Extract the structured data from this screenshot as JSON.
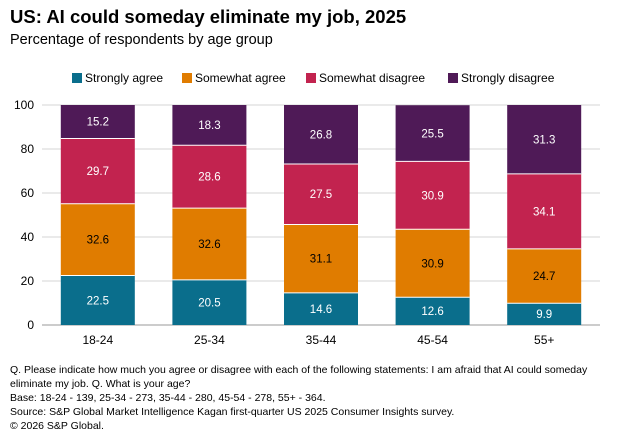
{
  "title": "US: AI could someday eliminate my job, 2025",
  "subtitle": "Percentage of respondents by age group",
  "notes": {
    "question": "Q. Please indicate how much you agree or disagree with each of the following statements: I am afraid that AI could someday eliminate my job. Q. What is your age?",
    "base": "Base: 18-24 - 139, 25-34 - 273, 35-44 - 280, 45-54 - 278, 55+ - 364.",
    "source": "Source: S&P Global Market Intelligence Kagan first-quarter US 2025 Consumer Insights survey.",
    "copyright": "© 2026 S&P Global."
  },
  "chart_data": {
    "type": "bar",
    "stacked": true,
    "categories": [
      "18-24",
      "25-34",
      "35-44",
      "45-54",
      "55+"
    ],
    "series": [
      {
        "name": "Strongly agree",
        "color": "#0a6e8c",
        "values": [
          22.5,
          20.5,
          14.6,
          12.6,
          9.9
        ]
      },
      {
        "name": "Somewhat agree",
        "color": "#e07c00",
        "values": [
          32.6,
          32.6,
          31.1,
          30.9,
          24.7
        ]
      },
      {
        "name": "Somewhat disagree",
        "color": "#c2234f",
        "values": [
          29.7,
          28.6,
          27.5,
          30.9,
          34.1
        ]
      },
      {
        "name": "Strongly disagree",
        "color": "#4f1a57",
        "values": [
          15.2,
          18.3,
          26.8,
          25.5,
          31.3
        ]
      }
    ],
    "ylim": [
      0,
      100
    ],
    "yticks": [
      0,
      20,
      40,
      60,
      80,
      100
    ],
    "grid": true,
    "legend": "top"
  }
}
